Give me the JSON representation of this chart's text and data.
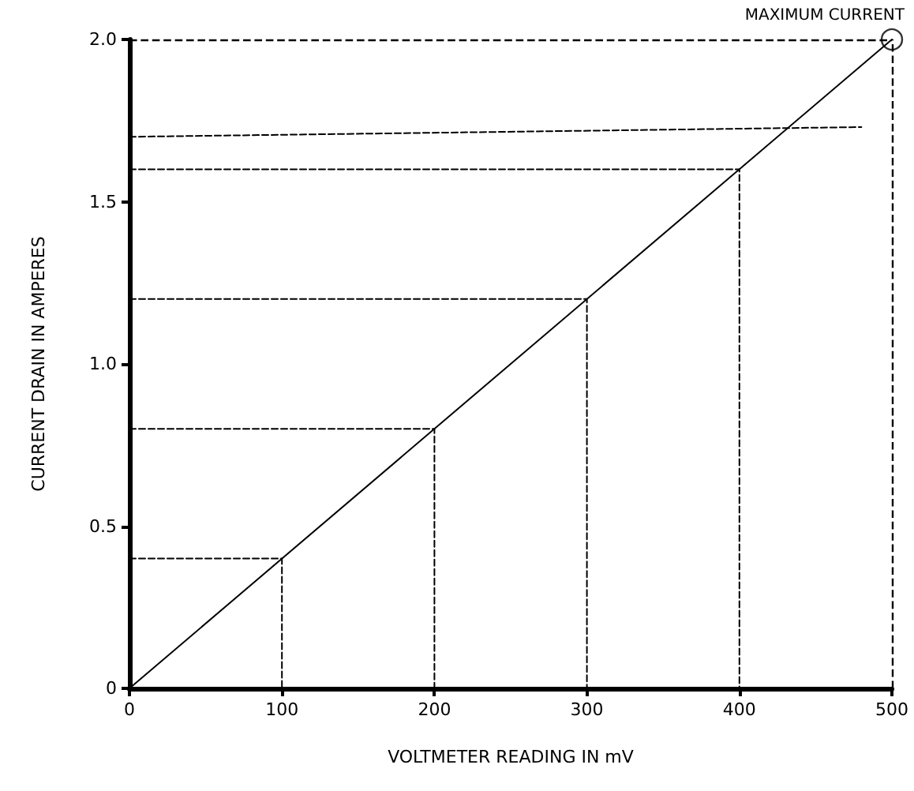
{
  "chart_data": {
    "type": "line",
    "xlabel": "VOLTMETER READING IN mV",
    "ylabel": "CURRENT DRAIN IN AMPERES",
    "xlim": [
      0,
      500
    ],
    "xticks": [
      0,
      100,
      200,
      300,
      400,
      500
    ],
    "ylim": [
      0,
      2.0
    ],
    "yticks": [
      0,
      0.5,
      {
        "value": 1.0,
        "label": "1.0"
      },
      1.5,
      {
        "value": 2.0,
        "label": "2.0"
      }
    ],
    "grid": false,
    "marker": "none",
    "line_style": "solid",
    "annotations": [
      {
        "text": "MAXIMUM CURRENT",
        "x": 500,
        "y": 2.0
      }
    ],
    "ref_lines": [
      {
        "axis": "y",
        "value": 2.0,
        "label": null,
        "color": "#000000",
        "line_style": "dashed"
      },
      {
        "axis": "x",
        "value": 500,
        "label": null,
        "color": "#000000",
        "line_style": "dashed"
      }
    ],
    "series": [
      {
        "x": [
          0,
          500
        ],
        "values": [
          0,
          2.0
        ],
        "color": "#000000"
      },
      {
        "x": [
          0,
          100,
          100
        ],
        "values": [
          0.4,
          0.4,
          0
        ],
        "color": "#000000",
        "line_style": "dashed"
      },
      {
        "x": [
          0,
          200,
          200
        ],
        "values": [
          0.8,
          0.8,
          0
        ],
        "color": "#000000",
        "line_style": "dashed"
      },
      {
        "x": [
          0,
          300,
          300
        ],
        "values": [
          1.2,
          1.2,
          0
        ],
        "color": "#000000",
        "line_style": "dashed"
      },
      {
        "x": [
          0,
          400,
          400
        ],
        "values": [
          1.6,
          1.6,
          0
        ],
        "color": "#000000",
        "line_style": "dashed"
      },
      {
        "x": [
          0,
          480
        ],
        "values": [
          1.7,
          1.73
        ],
        "color": "#000000",
        "line_style": "dashed"
      },
      {
        "type": "scatter",
        "x": [
          500
        ],
        "values": [
          2.0
        ],
        "color": "#000000",
        "marker": "circle"
      }
    ]
  }
}
